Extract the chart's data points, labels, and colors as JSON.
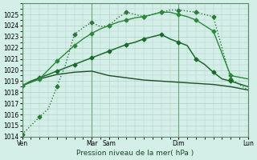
{
  "bg_color": "#d4eee8",
  "grid_color": "#b0d0c8",
  "xlabel": "Pression niveau de la mer( hPa )",
  "ylim": [
    1014,
    1026
  ],
  "yticks": [
    1014,
    1015,
    1016,
    1017,
    1018,
    1019,
    1020,
    1021,
    1022,
    1023,
    1024,
    1025
  ],
  "xtick_labels": [
    "Ven",
    "Mar",
    "Sam",
    "Dim",
    "Lun"
  ],
  "xtick_positions": [
    0,
    4,
    5,
    9,
    13
  ],
  "vline_color": "#6aaa7a",
  "vlines": [
    0,
    4,
    9,
    13
  ],
  "series": [
    {
      "x": [
        0,
        0.5,
        1,
        1.5,
        2,
        2.5,
        3,
        3.5,
        4,
        4.5,
        5,
        5.5,
        6,
        6.5,
        7,
        7.5,
        8,
        8.5,
        9,
        9.5,
        10,
        10.5,
        11,
        11.5,
        12,
        13
      ],
      "y": [
        1014.2,
        1015.0,
        1015.8,
        1016.5,
        1018.5,
        1020.5,
        1023.2,
        1023.8,
        1024.3,
        1023.9,
        1024.0,
        1024.7,
        1025.2,
        1025.0,
        1024.8,
        1025.0,
        1025.2,
        1025.4,
        1025.4,
        1025.3,
        1025.2,
        1025.0,
        1024.8,
        1022.0,
        1019.2,
        1018.2
      ],
      "color": "#2a7a35",
      "lw": 1.0,
      "marker": "D",
      "ms": 2.5,
      "markevery": 2,
      "style": ":"
    },
    {
      "x": [
        0,
        1,
        2,
        3,
        4,
        5,
        6,
        7,
        8,
        9,
        10,
        11,
        12,
        13
      ],
      "y": [
        1018.6,
        1019.2,
        1019.6,
        1019.8,
        1019.9,
        1019.5,
        1019.3,
        1019.1,
        1019.0,
        1018.9,
        1018.8,
        1018.7,
        1018.5,
        1018.2
      ],
      "color": "#1a5025",
      "lw": 1.0,
      "marker": null,
      "ms": 0,
      "markevery": 1,
      "style": "-"
    },
    {
      "x": [
        0,
        0.5,
        1,
        1.5,
        2,
        2.5,
        3,
        3.5,
        4,
        4.5,
        5,
        5.5,
        6,
        6.5,
        7,
        7.5,
        8,
        8.5,
        9,
        9.5,
        10,
        10.5,
        11,
        11.5,
        12,
        13
      ],
      "y": [
        1018.6,
        1019.0,
        1019.3,
        1019.6,
        1019.9,
        1020.2,
        1020.5,
        1020.8,
        1021.1,
        1021.4,
        1021.7,
        1022.0,
        1022.3,
        1022.5,
        1022.8,
        1023.0,
        1023.2,
        1022.8,
        1022.5,
        1022.2,
        1021.0,
        1020.5,
        1019.8,
        1019.2,
        1019.0,
        1018.5
      ],
      "color": "#1a6b2a",
      "lw": 1.1,
      "marker": "D",
      "ms": 2.5,
      "markevery": 2,
      "style": "-"
    },
    {
      "x": [
        0,
        0.5,
        1,
        1.5,
        2,
        2.5,
        3,
        3.5,
        4,
        4.5,
        5,
        5.5,
        6,
        6.5,
        7,
        7.5,
        8,
        8.5,
        9,
        9.5,
        10,
        10.5,
        11,
        11.5,
        12,
        13
      ],
      "y": [
        1018.6,
        1018.9,
        1019.2,
        1020.0,
        1020.8,
        1021.5,
        1022.2,
        1022.8,
        1023.3,
        1023.7,
        1024.0,
        1024.3,
        1024.5,
        1024.7,
        1024.8,
        1025.0,
        1025.2,
        1025.2,
        1025.0,
        1024.8,
        1024.5,
        1024.0,
        1023.5,
        1021.5,
        1019.5,
        1019.2
      ],
      "color": "#2a8a3a",
      "lw": 1.0,
      "marker": "D",
      "ms": 2.5,
      "markevery": 2,
      "style": "-"
    }
  ]
}
